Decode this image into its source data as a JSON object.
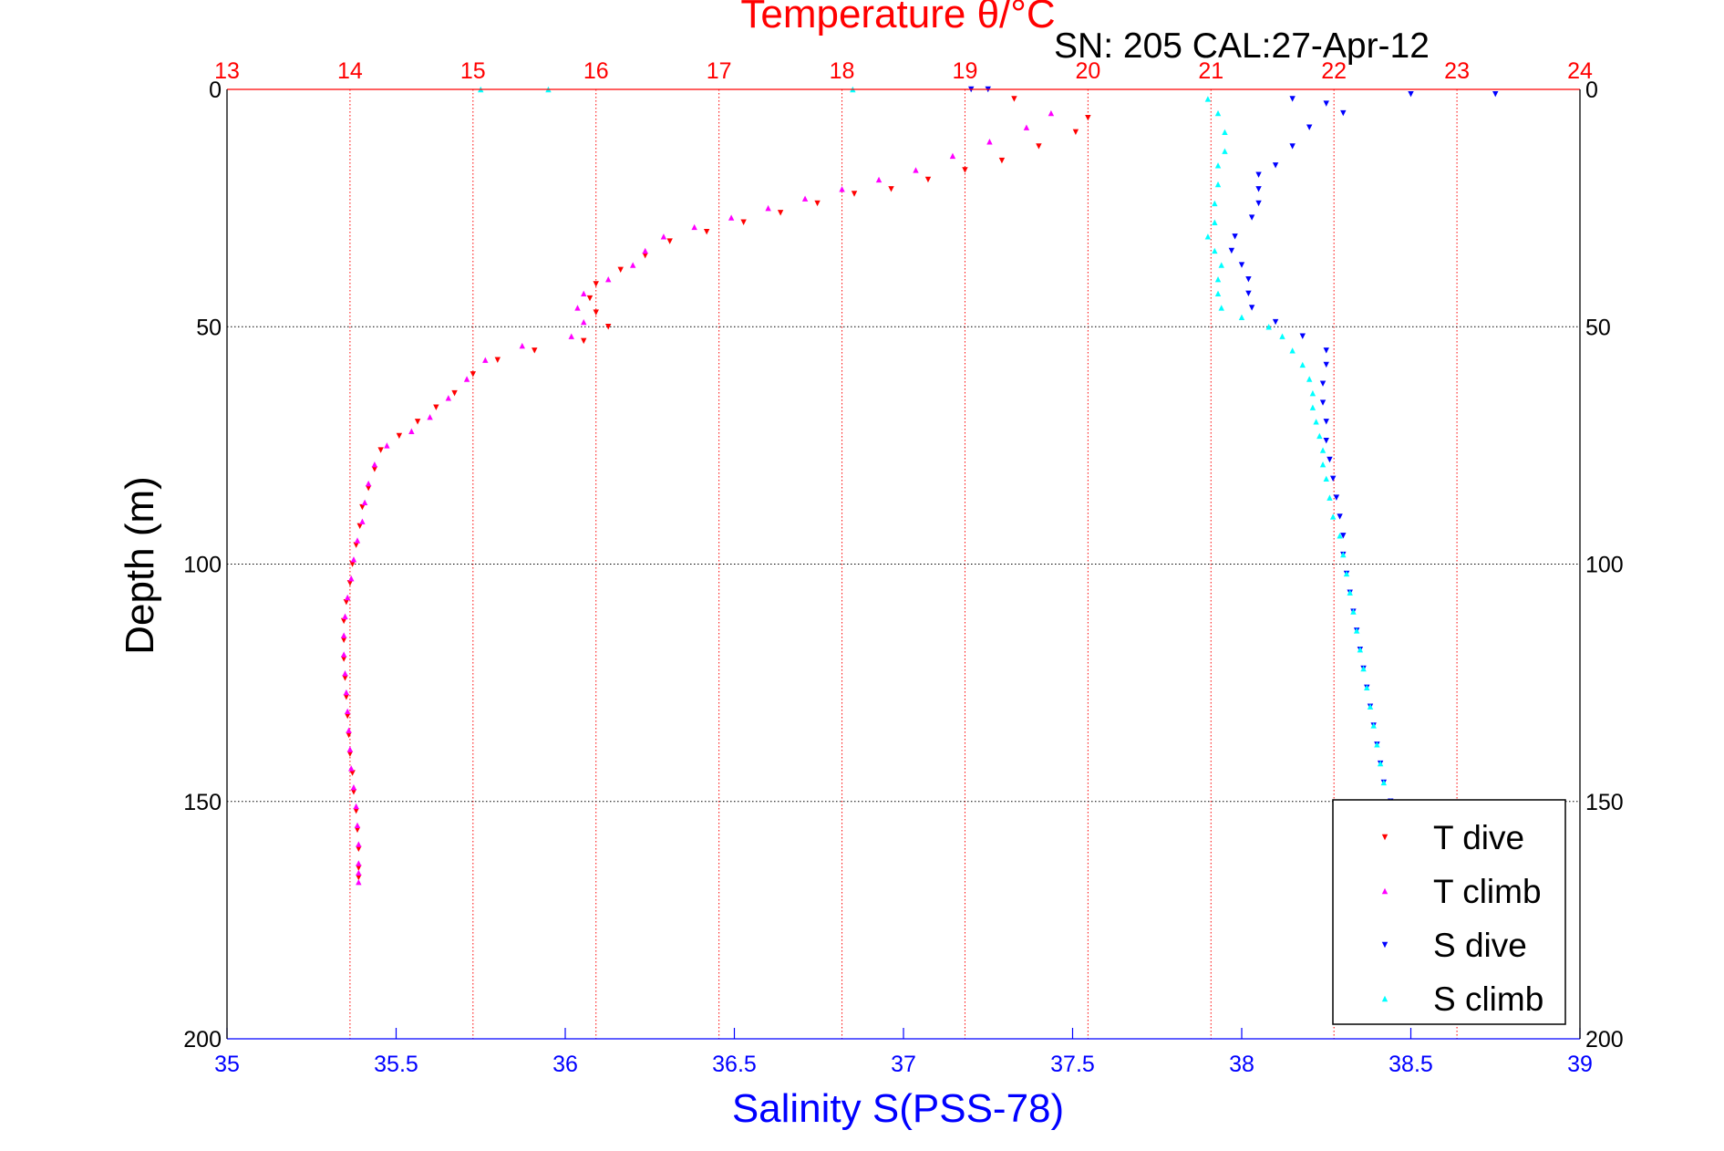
{
  "chart_data": {
    "type": "scatter",
    "title": "Temperature θ/°C",
    "subtitle": "SN: 205  CAL:27-Apr-12",
    "xlabel_bottom": "Salinity S(PSS-78)",
    "xlabel_top": "Temperature θ/°C",
    "ylabel": "Depth (m)",
    "ylim": [
      0,
      200
    ],
    "y_reversed": true,
    "xlim_bottom": [
      35,
      39
    ],
    "xlim_top": [
      13,
      24
    ],
    "yticks": [
      "0",
      "50",
      "100",
      "150",
      "200"
    ],
    "xticks_bottom": [
      "35",
      "35.5",
      "36",
      "36.5",
      "37",
      "37.5",
      "38",
      "38.5",
      "39"
    ],
    "xticks_top": [
      "13",
      "14",
      "15",
      "16",
      "17",
      "18",
      "19",
      "20",
      "21",
      "22",
      "23",
      "24"
    ],
    "grid": true,
    "legend": {
      "position": "bottom-right",
      "entries": [
        "T dive",
        "T climb",
        "S dive",
        "S climb"
      ]
    },
    "colors": {
      "T dive": "#ff0000",
      "T climb": "#ff00ff",
      "S dive": "#0000ff",
      "S climb": "#00ffff",
      "top_axis": "#ff0000",
      "bottom_axis": "#0000ff"
    },
    "series": [
      {
        "name": "T dive",
        "axis": "temperature",
        "marker": "triangle-down",
        "points": [
          [
            19.4,
            2
          ],
          [
            20.0,
            6
          ],
          [
            19.9,
            9
          ],
          [
            19.6,
            12
          ],
          [
            19.3,
            15
          ],
          [
            19.0,
            17
          ],
          [
            18.7,
            19
          ],
          [
            18.4,
            21
          ],
          [
            18.1,
            22
          ],
          [
            17.8,
            24
          ],
          [
            17.5,
            26
          ],
          [
            17.2,
            28
          ],
          [
            16.9,
            30
          ],
          [
            16.6,
            32
          ],
          [
            16.4,
            35
          ],
          [
            16.2,
            38
          ],
          [
            16.0,
            41
          ],
          [
            15.95,
            44
          ],
          [
            16.0,
            47
          ],
          [
            16.1,
            50
          ],
          [
            15.9,
            53
          ],
          [
            15.5,
            55
          ],
          [
            15.2,
            57
          ],
          [
            15.0,
            60
          ],
          [
            14.85,
            64
          ],
          [
            14.7,
            67
          ],
          [
            14.55,
            70
          ],
          [
            14.4,
            73
          ],
          [
            14.25,
            76
          ],
          [
            14.2,
            80
          ],
          [
            14.15,
            84
          ],
          [
            14.1,
            88
          ],
          [
            14.08,
            92
          ],
          [
            14.05,
            96
          ],
          [
            14.02,
            100
          ],
          [
            14.0,
            104
          ],
          [
            13.97,
            108
          ],
          [
            13.95,
            112
          ],
          [
            13.95,
            116
          ],
          [
            13.95,
            120
          ],
          [
            13.96,
            124
          ],
          [
            13.97,
            128
          ],
          [
            13.98,
            132
          ],
          [
            13.99,
            136
          ],
          [
            14.0,
            140
          ],
          [
            14.02,
            144
          ],
          [
            14.03,
            148
          ],
          [
            14.05,
            152
          ],
          [
            14.06,
            156
          ],
          [
            14.07,
            160
          ],
          [
            14.07,
            164
          ],
          [
            14.07,
            166
          ]
        ]
      },
      {
        "name": "T climb",
        "axis": "temperature",
        "marker": "triangle-up",
        "points": [
          [
            19.7,
            5
          ],
          [
            19.5,
            8
          ],
          [
            19.2,
            11
          ],
          [
            18.9,
            14
          ],
          [
            18.6,
            17
          ],
          [
            18.3,
            19
          ],
          [
            18.0,
            21
          ],
          [
            17.7,
            23
          ],
          [
            17.4,
            25
          ],
          [
            17.1,
            27
          ],
          [
            16.8,
            29
          ],
          [
            16.55,
            31
          ],
          [
            16.4,
            34
          ],
          [
            16.3,
            37
          ],
          [
            16.1,
            40
          ],
          [
            15.9,
            43
          ],
          [
            15.85,
            46
          ],
          [
            15.9,
            49
          ],
          [
            15.8,
            52
          ],
          [
            15.4,
            54
          ],
          [
            15.1,
            57
          ],
          [
            14.95,
            61
          ],
          [
            14.8,
            65
          ],
          [
            14.65,
            69
          ],
          [
            14.5,
            72
          ],
          [
            14.3,
            75
          ],
          [
            14.2,
            79
          ],
          [
            14.15,
            83
          ],
          [
            14.12,
            87
          ],
          [
            14.1,
            91
          ],
          [
            14.06,
            95
          ],
          [
            14.03,
            99
          ],
          [
            14.01,
            103
          ],
          [
            13.98,
            107
          ],
          [
            13.96,
            111
          ],
          [
            13.95,
            115
          ],
          [
            13.95,
            119
          ],
          [
            13.96,
            123
          ],
          [
            13.97,
            127
          ],
          [
            13.98,
            131
          ],
          [
            13.99,
            135
          ],
          [
            14.0,
            139
          ],
          [
            14.01,
            143
          ],
          [
            14.03,
            147
          ],
          [
            14.05,
            151
          ],
          [
            14.06,
            155
          ],
          [
            14.07,
            159
          ],
          [
            14.07,
            163
          ],
          [
            14.07,
            165
          ],
          [
            14.07,
            167
          ]
        ]
      },
      {
        "name": "S dive",
        "axis": "salinity",
        "marker": "triangle-down",
        "points": [
          [
            37.2,
            0
          ],
          [
            37.25,
            0
          ],
          [
            38.5,
            1
          ],
          [
            38.75,
            1
          ],
          [
            38.15,
            2
          ],
          [
            38.25,
            3
          ],
          [
            38.3,
            5
          ],
          [
            38.2,
            8
          ],
          [
            38.15,
            12
          ],
          [
            38.1,
            16
          ],
          [
            38.05,
            18
          ],
          [
            38.05,
            21
          ],
          [
            38.05,
            24
          ],
          [
            38.03,
            27
          ],
          [
            37.98,
            31
          ],
          [
            37.97,
            34
          ],
          [
            38.0,
            37
          ],
          [
            38.02,
            40
          ],
          [
            38.02,
            43
          ],
          [
            38.03,
            46
          ],
          [
            38.1,
            49
          ],
          [
            38.18,
            52
          ],
          [
            38.25,
            55
          ],
          [
            38.25,
            58
          ],
          [
            38.24,
            62
          ],
          [
            38.24,
            66
          ],
          [
            38.25,
            70
          ],
          [
            38.25,
            74
          ],
          [
            38.26,
            78
          ],
          [
            38.27,
            82
          ],
          [
            38.28,
            86
          ],
          [
            38.29,
            90
          ],
          [
            38.3,
            94
          ],
          [
            38.3,
            98
          ],
          [
            38.31,
            102
          ],
          [
            38.32,
            106
          ],
          [
            38.33,
            110
          ],
          [
            38.34,
            114
          ],
          [
            38.35,
            118
          ],
          [
            38.36,
            122
          ],
          [
            38.37,
            126
          ],
          [
            38.38,
            130
          ],
          [
            38.39,
            134
          ],
          [
            38.4,
            138
          ],
          [
            38.41,
            142
          ],
          [
            38.42,
            146
          ],
          [
            38.44,
            150
          ]
        ]
      },
      {
        "name": "S climb",
        "axis": "salinity",
        "marker": "triangle-up",
        "points": [
          [
            35.75,
            0
          ],
          [
            35.95,
            0
          ],
          [
            36.85,
            0
          ],
          [
            37.9,
            2
          ],
          [
            37.93,
            5
          ],
          [
            37.95,
            9
          ],
          [
            37.95,
            13
          ],
          [
            37.93,
            16
          ],
          [
            37.93,
            20
          ],
          [
            37.92,
            24
          ],
          [
            37.92,
            28
          ],
          [
            37.9,
            31
          ],
          [
            37.92,
            34
          ],
          [
            37.94,
            37
          ],
          [
            37.93,
            40
          ],
          [
            37.93,
            43
          ],
          [
            37.94,
            46
          ],
          [
            38.0,
            48
          ],
          [
            38.08,
            50
          ],
          [
            38.12,
            52
          ],
          [
            38.15,
            55
          ],
          [
            38.18,
            58
          ],
          [
            38.2,
            61
          ],
          [
            38.21,
            64
          ],
          [
            38.21,
            67
          ],
          [
            38.22,
            70
          ],
          [
            38.23,
            73
          ],
          [
            38.24,
            76
          ],
          [
            38.24,
            79
          ],
          [
            38.25,
            82
          ],
          [
            38.26,
            86
          ],
          [
            38.27,
            90
          ],
          [
            38.29,
            94
          ],
          [
            38.3,
            98
          ],
          [
            38.31,
            102
          ],
          [
            38.32,
            106
          ],
          [
            38.33,
            110
          ],
          [
            38.34,
            114
          ],
          [
            38.35,
            118
          ],
          [
            38.36,
            122
          ],
          [
            38.37,
            126
          ],
          [
            38.38,
            130
          ],
          [
            38.39,
            134
          ],
          [
            38.4,
            138
          ],
          [
            38.41,
            142
          ],
          [
            38.42,
            146
          ],
          [
            38.44,
            150
          ]
        ]
      }
    ]
  }
}
